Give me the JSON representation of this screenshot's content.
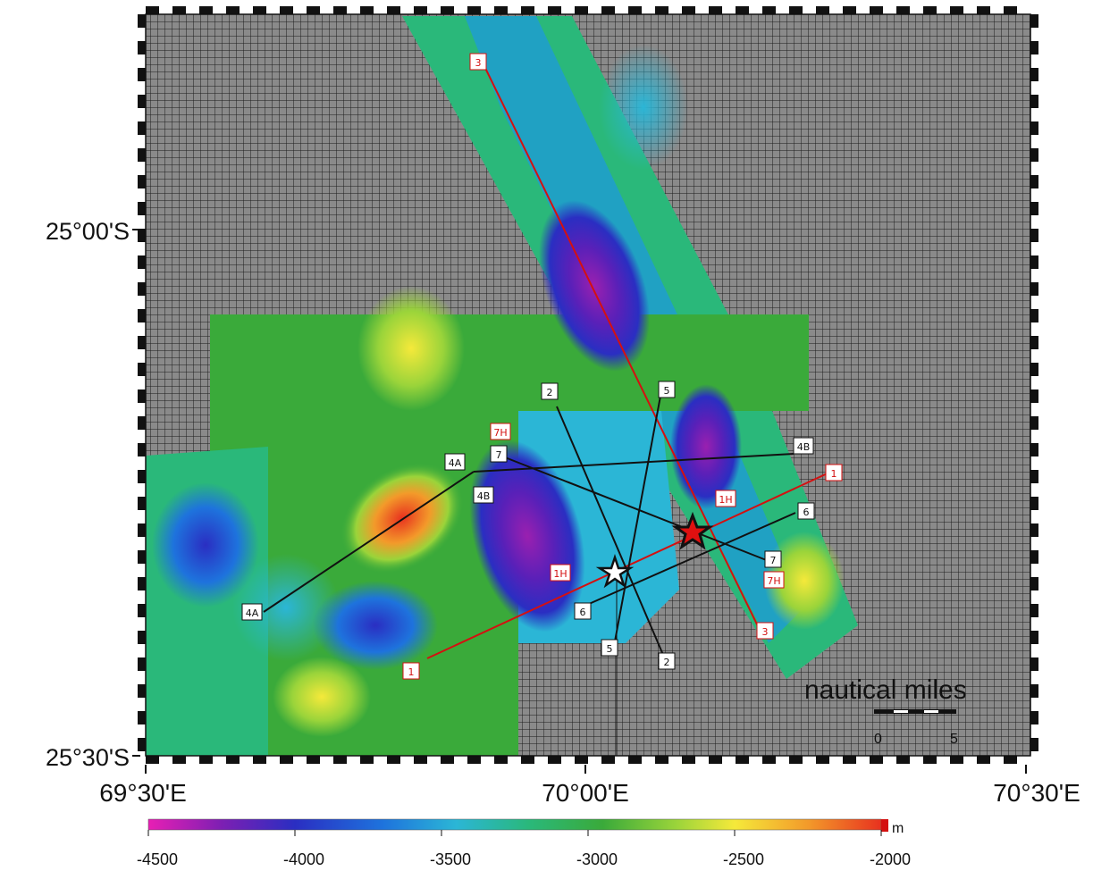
{
  "axes": {
    "y_labels": [
      "25°00'S",
      "25°30'S"
    ],
    "x_labels": [
      "69°30'E",
      "70°00'E",
      "70°30'E"
    ]
  },
  "scale_bar": {
    "title": "nautical miles",
    "ticks": [
      "0",
      "5"
    ]
  },
  "colorbar": {
    "unit": "m",
    "ticks": [
      "-4500",
      "-4000",
      "-3500",
      "-3000",
      "-2500",
      "-2000"
    ],
    "colors": [
      "#e81fb4",
      "#7d1fb3",
      "#2a2ec2",
      "#1e73dd",
      "#2bb6d6",
      "#2ab87a",
      "#3aaa3a",
      "#9ad43a",
      "#f5e93a",
      "#f39a2a",
      "#e8321f",
      "#d41010"
    ]
  },
  "survey_lines": {
    "red": [
      {
        "id": "line-3",
        "labels": [
          "3",
          "3"
        ]
      },
      {
        "id": "line-1",
        "labels": [
          "1",
          "1"
        ]
      },
      {
        "id": "line-1H",
        "labels": [
          "1H",
          "1H"
        ]
      },
      {
        "id": "line-7H",
        "labels": [
          "7H",
          "7H"
        ]
      }
    ],
    "black": [
      {
        "id": "line-2",
        "labels": [
          "2",
          "2"
        ]
      },
      {
        "id": "line-5",
        "labels": [
          "5",
          "5"
        ]
      },
      {
        "id": "line-4A",
        "labels": [
          "4A",
          "4A"
        ]
      },
      {
        "id": "line-4B",
        "labels": [
          "4B",
          "4B"
        ]
      },
      {
        "id": "line-6",
        "labels": [
          "6",
          "6"
        ]
      },
      {
        "id": "line-7",
        "labels": [
          "7",
          "7"
        ]
      }
    ]
  },
  "markers": [
    {
      "name": "white-star",
      "color": "#ffffff"
    },
    {
      "name": "red-star",
      "color": "#e01010"
    }
  ]
}
